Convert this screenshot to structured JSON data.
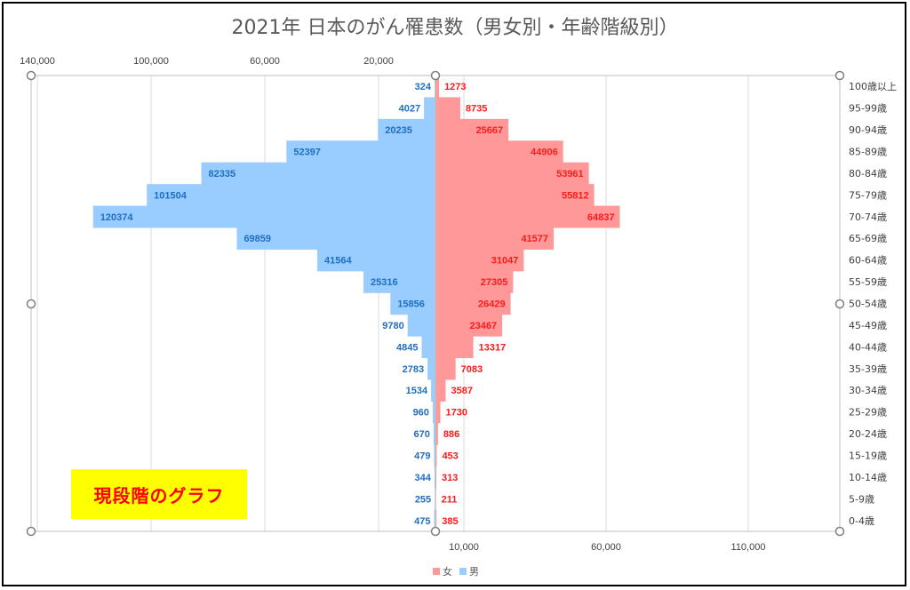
{
  "chart_data": {
    "type": "bar",
    "orientation": "horizontal-butterfly",
    "title": "2021年 日本のがん罹患数（男女別・年齢階級別）",
    "categories": [
      "100歳以上",
      "95-99歳",
      "90-94歳",
      "85-89歳",
      "80-84歳",
      "75-79歳",
      "70-74歳",
      "65-69歳",
      "60-64歳",
      "55-59歳",
      "50-54歳",
      "45-49歳",
      "40-44歳",
      "35-39歳",
      "30-34歳",
      "25-29歳",
      "20-24歳",
      "15-19歳",
      "10-14歳",
      "5-9歳",
      "0-4歳"
    ],
    "series": [
      {
        "name": "女",
        "color": "#ff9999",
        "label_color": "#ff1a1a",
        "values": [
          1273,
          8735,
          25667,
          44906,
          53961,
          55812,
          64837,
          41577,
          31047,
          27305,
          26429,
          23467,
          13317,
          7083,
          3587,
          1730,
          886,
          453,
          313,
          211,
          385
        ]
      },
      {
        "name": "男",
        "color": "#99ccff",
        "label_color": "#1f6fc0",
        "values": [
          324,
          4027,
          20235,
          52397,
          82335,
          101504,
          120374,
          69859,
          41564,
          25316,
          15856,
          9780,
          4845,
          2783,
          1534,
          960,
          670,
          479,
          344,
          255,
          475
        ]
      }
    ],
    "top_axis": {
      "ticks": [
        "140,000",
        "100,000",
        "60,000",
        "20,000"
      ],
      "values": [
        140000,
        100000,
        60000,
        20000
      ],
      "range": [
        0,
        140000
      ]
    },
    "bottom_axis": {
      "ticks": [
        "10,000",
        "60,000",
        "110,000"
      ],
      "values": [
        10000,
        60000,
        110000
      ],
      "range": [
        0,
        140000
      ]
    },
    "grid": true,
    "legend_position": "bottom"
  },
  "annotation": "現段階のグラフ"
}
